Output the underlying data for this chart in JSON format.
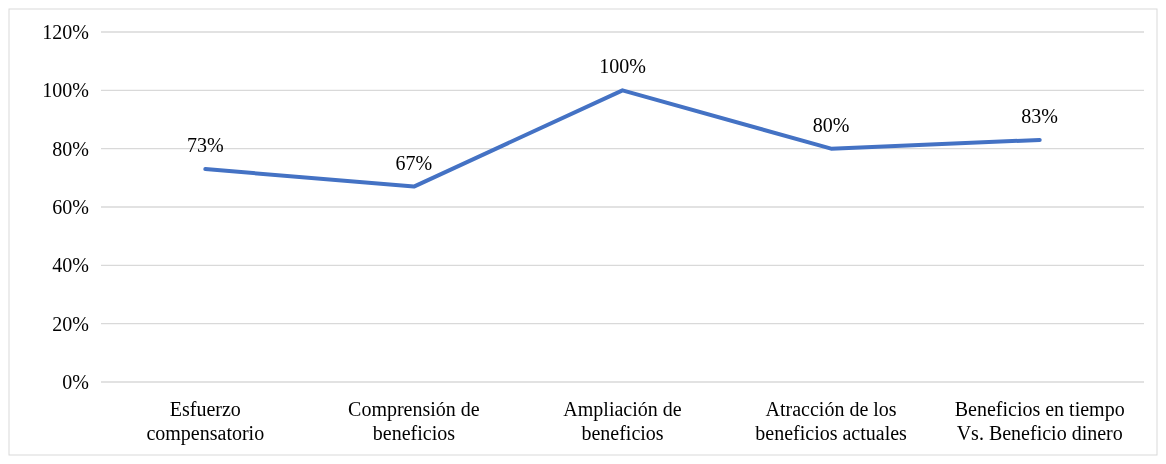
{
  "chart_data": {
    "type": "line",
    "categories": [
      "Esfuerzo compensatorio",
      "Comprensión de beneficios",
      "Ampliación de beneficios",
      "Atracción de los beneficios actuales",
      "Beneficios en tiempo Vs. Beneficio dinero"
    ],
    "series": [
      {
        "color": "#4472c4",
        "values": [
          73,
          67,
          100,
          80,
          83
        ]
      }
    ],
    "value_labels": [
      "73%",
      "67%",
      "100%",
      "80%",
      "83%"
    ],
    "ylim": [
      0,
      120
    ],
    "yticks": [
      {
        "value": 0,
        "label": "0%"
      },
      {
        "value": 20,
        "label": "20%"
      },
      {
        "value": 40,
        "label": "40%"
      },
      {
        "value": 60,
        "label": "60%"
      },
      {
        "value": 80,
        "label": "80%"
      },
      {
        "value": 100,
        "label": "100%"
      },
      {
        "value": 120,
        "label": "120%"
      }
    ],
    "grid": "y",
    "marker": "none",
    "line_style": "solid"
  }
}
